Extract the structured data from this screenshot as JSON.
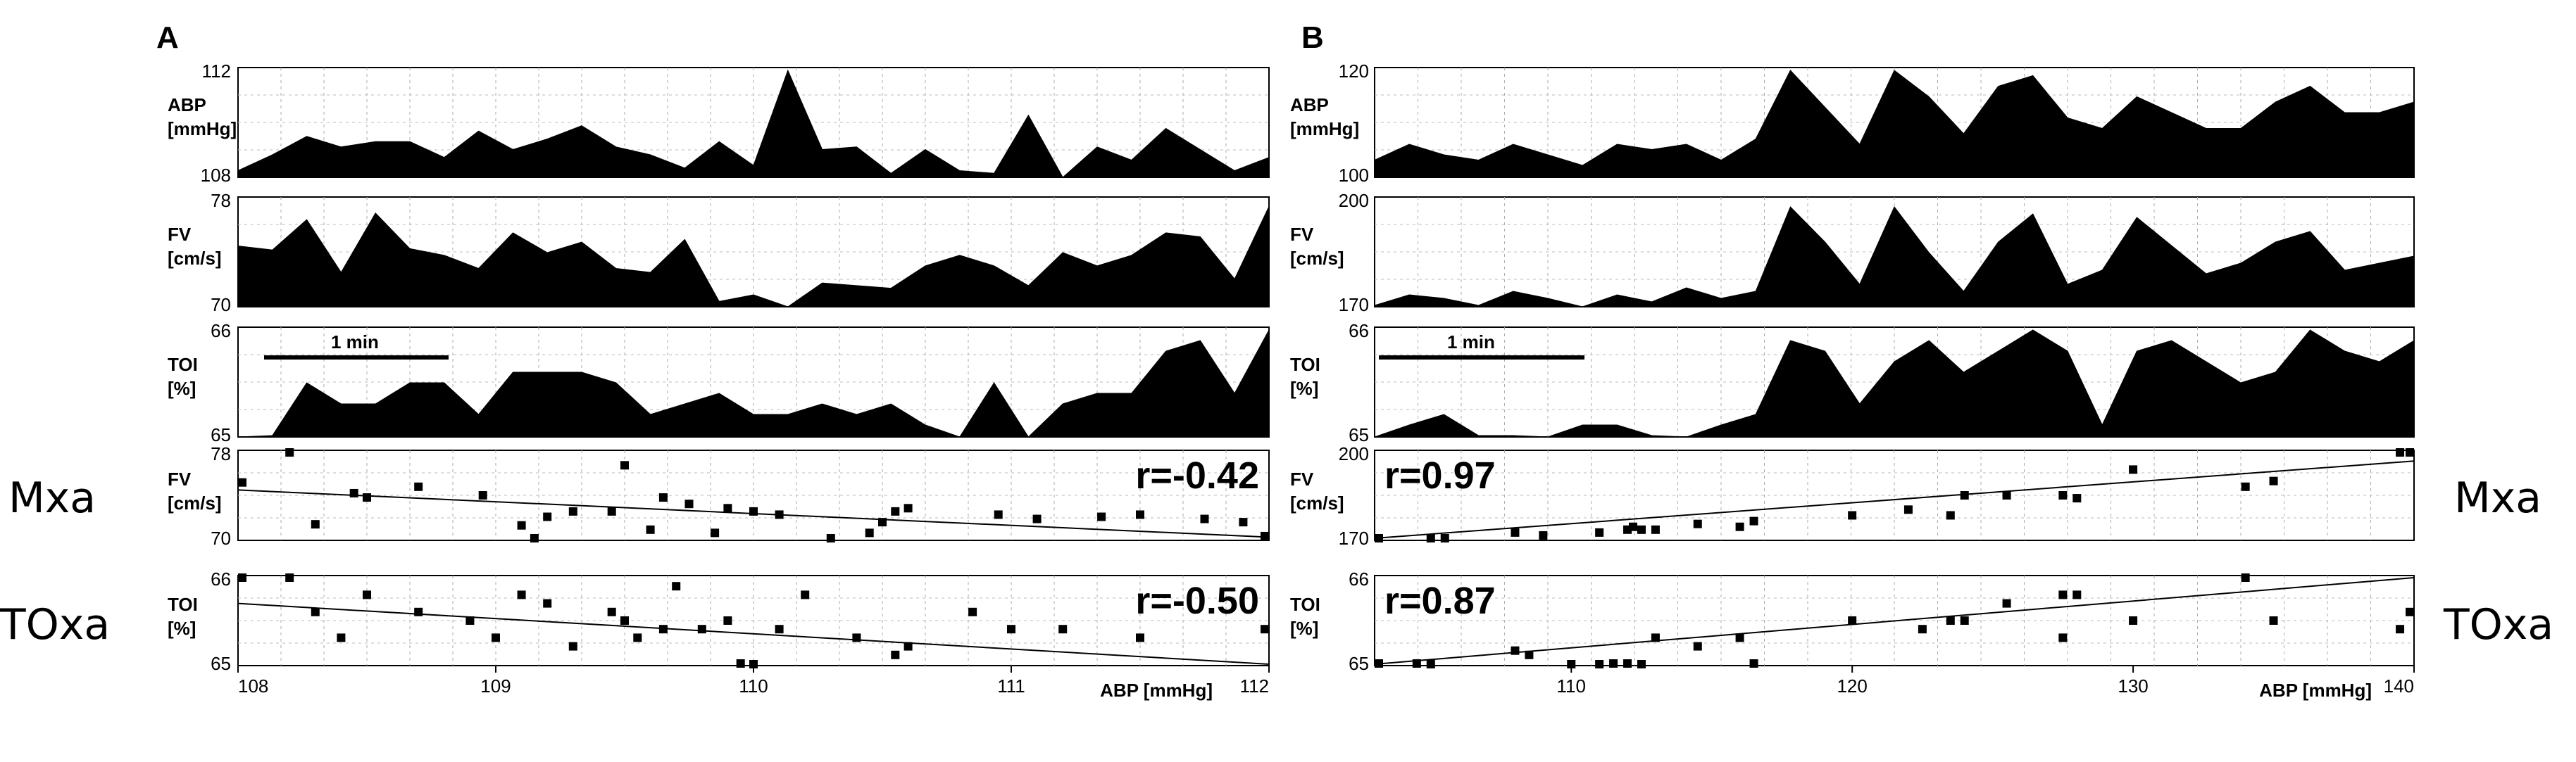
{
  "side_labels": {
    "left_top": "Mxa",
    "left_bottom": "TOxa",
    "right_top": "Mxa",
    "right_bottom": "TOxa"
  },
  "chart_data": [
    {
      "type": "area",
      "panel": "A",
      "scale_bar_label": "1 min",
      "rows": [
        {
          "ylabel": [
            "ABP",
            "[mmHg]"
          ],
          "ylim": [
            108,
            112
          ],
          "ticks": [
            "112",
            "108"
          ],
          "values": [
            108.2,
            108.8,
            109.5,
            109.1,
            109.3,
            109.3,
            108.7,
            109.7,
            109.0,
            109.4,
            109.9,
            109.1,
            108.8,
            108.3,
            109.3,
            108.4,
            112.0,
            109.0,
            109.1,
            108.1,
            109.0,
            108.2,
            108.1,
            110.3,
            107.8,
            109.1,
            108.6,
            109.8,
            109.0,
            108.2,
            108.7
          ]
        },
        {
          "ylabel": [
            "FV",
            "[cm/s]"
          ],
          "ylim": [
            70,
            78
          ],
          "ticks": [
            "78",
            "70"
          ],
          "values": [
            74.5,
            74.2,
            76.5,
            72.5,
            77.0,
            74.3,
            73.8,
            72.8,
            75.5,
            74.0,
            74.8,
            72.8,
            72.5,
            75.0,
            70.3,
            70.8,
            69.8,
            71.7,
            71.5,
            71.3,
            73.0,
            73.8,
            73.0,
            71.5,
            74.0,
            73.0,
            73.8,
            75.5,
            75.2,
            72.0,
            77.5
          ]
        },
        {
          "ylabel": [
            "TOI",
            "[%]"
          ],
          "ylim": [
            65,
            66
          ],
          "ticks": [
            "66",
            "65"
          ],
          "values": [
            64.9,
            65.0,
            65.5,
            65.3,
            65.3,
            65.5,
            65.5,
            65.2,
            65.6,
            65.6,
            65.6,
            65.5,
            65.2,
            65.3,
            65.4,
            65.2,
            65.2,
            65.3,
            65.2,
            65.3,
            65.1,
            64.9,
            65.5,
            64.9,
            65.3,
            65.4,
            65.4,
            65.8,
            65.9,
            65.4,
            66.0
          ]
        }
      ],
      "scatter_rows": [
        {
          "label": "Mxa",
          "ylabel": [
            "FV",
            "[cm/s]"
          ],
          "ylim": [
            70,
            78
          ],
          "ticks": [
            "78",
            "70"
          ],
          "r": "r=-0.42",
          "line": [
            [
              108.0,
              74.5
            ],
            [
              112.0,
              70.1
            ]
          ],
          "points": [
            [
              108.0,
              75.2
            ],
            [
              108.2,
              78.0
            ],
            [
              108.3,
              71.3
            ],
            [
              108.45,
              74.2
            ],
            [
              108.5,
              73.8
            ],
            [
              108.7,
              74.8
            ],
            [
              108.95,
              74.0
            ],
            [
              109.1,
              71.2
            ],
            [
              109.15,
              70.0
            ],
            [
              109.2,
              72.0
            ],
            [
              109.3,
              72.5
            ],
            [
              109.45,
              72.5
            ],
            [
              109.5,
              76.8
            ],
            [
              109.6,
              70.8
            ],
            [
              109.65,
              73.8
            ],
            [
              109.75,
              73.2
            ],
            [
              109.85,
              70.5
            ],
            [
              109.9,
              72.8
            ],
            [
              110.0,
              72.5
            ],
            [
              110.1,
              72.2
            ],
            [
              110.3,
              70.0
            ],
            [
              110.45,
              70.5
            ],
            [
              110.5,
              71.5
            ],
            [
              110.55,
              72.5
            ],
            [
              110.6,
              72.8
            ],
            [
              110.95,
              72.2
            ],
            [
              111.1,
              71.8
            ],
            [
              111.35,
              72.0
            ],
            [
              111.5,
              72.2
            ],
            [
              111.75,
              71.8
            ],
            [
              111.9,
              71.5
            ],
            [
              112.0,
              70.2
            ]
          ]
        },
        {
          "label": "TOxa",
          "ylabel": [
            "TOI",
            "[%]"
          ],
          "ylim": [
            65,
            66
          ],
          "ticks": [
            "66",
            "65"
          ],
          "r": "r=-0.50",
          "line": [
            [
              108.0,
              65.7
            ],
            [
              112.0,
              64.9
            ]
          ],
          "points": [
            [
              108.0,
              66.0
            ],
            [
              108.2,
              66.0
            ],
            [
              108.3,
              65.6
            ],
            [
              108.4,
              65.3
            ],
            [
              108.5,
              65.8
            ],
            [
              108.7,
              65.6
            ],
            [
              108.9,
              65.5
            ],
            [
              109.0,
              65.3
            ],
            [
              109.1,
              65.8
            ],
            [
              109.2,
              65.7
            ],
            [
              109.3,
              65.2
            ],
            [
              109.45,
              65.6
            ],
            [
              109.5,
              65.5
            ],
            [
              109.55,
              65.3
            ],
            [
              109.65,
              65.4
            ],
            [
              109.7,
              65.9
            ],
            [
              109.8,
              65.4
            ],
            [
              109.9,
              65.5
            ],
            [
              109.95,
              65.0
            ],
            [
              110.0,
              64.9
            ],
            [
              110.1,
              65.4
            ],
            [
              110.2,
              65.8
            ],
            [
              110.4,
              65.3
            ],
            [
              110.55,
              65.1
            ],
            [
              110.6,
              65.2
            ],
            [
              110.85,
              65.6
            ],
            [
              111.0,
              65.4
            ],
            [
              111.2,
              65.4
            ],
            [
              111.5,
              65.3
            ],
            [
              112.0,
              65.4
            ]
          ]
        }
      ],
      "x_ticks": [
        108,
        109,
        110,
        111,
        112
      ],
      "xlim": [
        108,
        112
      ],
      "xlabel": "ABP [mmHg]"
    },
    {
      "type": "area",
      "panel": "B",
      "scale_bar_label": "1 min",
      "rows": [
        {
          "ylabel": [
            "ABP",
            "[mmHg]"
          ],
          "ylim": [
            100,
            120
          ],
          "ticks": [
            "120",
            "100"
          ],
          "values": [
            103,
            106,
            104,
            103,
            106,
            104,
            102,
            106,
            105,
            106,
            103,
            107,
            120,
            113,
            106,
            120,
            115,
            108,
            117,
            119,
            111,
            109,
            115,
            112,
            109,
            109,
            114,
            117,
            112,
            112,
            114
          ]
        },
        {
          "ylabel": [
            "FV",
            "[cm/s]"
          ],
          "ylim": [
            170,
            200
          ],
          "ticks": [
            "200",
            "170"
          ],
          "values": [
            170,
            173,
            172,
            170,
            174,
            172,
            169,
            173,
            171,
            175,
            172,
            174,
            198,
            188,
            176,
            198,
            185,
            174,
            188,
            196,
            176,
            180,
            195,
            187,
            179,
            182,
            188,
            191,
            180,
            182,
            184
          ]
        },
        {
          "ylabel": [
            "TOI",
            "[%]"
          ],
          "ylim": [
            65,
            66
          ],
          "ticks": [
            "66",
            "65"
          ],
          "values": [
            64.9,
            65.1,
            65.2,
            65.0,
            65.0,
            64.8,
            65.1,
            65.1,
            65.0,
            64.9,
            65.1,
            65.2,
            65.9,
            65.8,
            65.3,
            65.7,
            65.9,
            65.6,
            65.8,
            66.0,
            65.8,
            65.1,
            65.8,
            65.9,
            65.7,
            65.5,
            65.6,
            66.0,
            65.8,
            65.7,
            65.9
          ]
        }
      ],
      "scatter_rows": [
        {
          "label": "Mxa",
          "ylabel": [
            "FV",
            "[cm/s]"
          ],
          "ylim": [
            170,
            200
          ],
          "ticks": [
            "200",
            "170"
          ],
          "r": "r=0.97",
          "line": [
            [
              103.0,
              170.0
            ],
            [
              140.0,
              197.0
            ]
          ],
          "points": [
            [
              103,
              170
            ],
            [
              105,
              170
            ],
            [
              105.5,
              170
            ],
            [
              108,
              172
            ],
            [
              109,
              171
            ],
            [
              111,
              172
            ],
            [
              112,
              173
            ],
            [
              112.2,
              174
            ],
            [
              112.5,
              173
            ],
            [
              113,
              173
            ],
            [
              114.5,
              175
            ],
            [
              116,
              174
            ],
            [
              116.5,
              176
            ],
            [
              120,
              178
            ],
            [
              122,
              180
            ],
            [
              123.5,
              178
            ],
            [
              124,
              185
            ],
            [
              125.5,
              185
            ],
            [
              127.5,
              185
            ],
            [
              128,
              184
            ],
            [
              130,
              194
            ],
            [
              134,
              188
            ],
            [
              135,
              190
            ],
            [
              139.5,
              200
            ],
            [
              140,
              200
            ],
            [
              140.2,
              200
            ]
          ]
        },
        {
          "label": "TOxa",
          "ylabel": [
            "TOI",
            "[%]"
          ],
          "ylim": [
            65,
            66
          ],
          "ticks": [
            "66",
            "65"
          ],
          "r": "r=0.87",
          "line": [
            [
              103.0,
              64.9
            ],
            [
              140.0,
              66.0
            ]
          ],
          "points": [
            [
              103,
              65.0
            ],
            [
              104.5,
              65.0
            ],
            [
              105,
              64.95
            ],
            [
              108,
              65.15
            ],
            [
              108.5,
              65.1
            ],
            [
              110,
              64.9
            ],
            [
              111,
              64.95
            ],
            [
              111.5,
              65.0
            ],
            [
              112,
              65.0
            ],
            [
              112.5,
              64.9
            ],
            [
              113,
              65.3
            ],
            [
              114.5,
              65.2
            ],
            [
              116,
              65.3
            ],
            [
              116.5,
              65.0
            ],
            [
              120,
              65.5
            ],
            [
              122.5,
              65.4
            ],
            [
              123.5,
              65.5
            ],
            [
              124,
              65.5
            ],
            [
              125.5,
              65.7
            ],
            [
              127.5,
              65.8
            ],
            [
              127.5,
              65.3
            ],
            [
              128,
              65.8
            ],
            [
              130,
              65.5
            ],
            [
              134,
              66.0
            ],
            [
              135,
              65.5
            ],
            [
              139.5,
              65.4
            ],
            [
              140,
              65.6
            ]
          ]
        }
      ],
      "x_ticks": [
        110,
        120,
        130,
        140
      ],
      "xlim": [
        103,
        140
      ],
      "xlabel": "ABP [mmHg]"
    }
  ]
}
